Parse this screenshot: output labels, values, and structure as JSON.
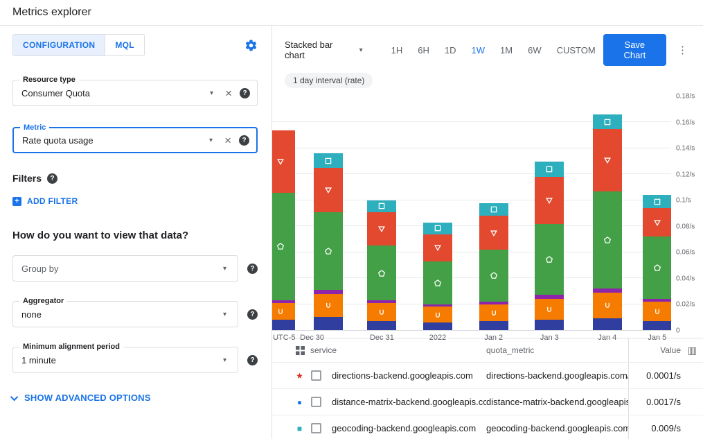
{
  "header": {
    "title": "Metrics explorer"
  },
  "config_panel": {
    "tabs": [
      {
        "label": "CONFIGURATION",
        "active": true
      },
      {
        "label": "MQL",
        "active": false
      }
    ],
    "resource_type": {
      "label": "Resource type",
      "value": "Consumer Quota"
    },
    "metric": {
      "label": "Metric",
      "value": "Rate quota usage"
    },
    "filters_label": "Filters",
    "add_filter_label": "ADD FILTER",
    "view_question": "How do you want to view that data?",
    "group_by": {
      "placeholder": "Group by"
    },
    "aggregator": {
      "label": "Aggregator",
      "value": "none"
    },
    "alignment": {
      "label": "Minimum alignment period",
      "value": "1 minute"
    },
    "advanced_label": "SHOW ADVANCED OPTIONS"
  },
  "toolbar": {
    "chart_type": "Stacked bar chart",
    "ranges": [
      "1H",
      "6H",
      "1D",
      "1W",
      "1M",
      "6W",
      "CUSTOM"
    ],
    "active_range": "1W",
    "save_label": "Save Chart"
  },
  "chip": "1 day interval (rate)",
  "chart_data": {
    "type": "bar",
    "subtype": "stacked",
    "grid": true,
    "ylim": [
      0,
      0.18
    ],
    "yticks": [
      {
        "v": 0.18,
        "label": "0.18/s"
      },
      {
        "v": 0.16,
        "label": "0.16/s"
      },
      {
        "v": 0.14,
        "label": "0.14/s"
      },
      {
        "v": 0.12,
        "label": "0.12/s"
      },
      {
        "v": 0.1,
        "label": "0.1/s"
      },
      {
        "v": 0.08,
        "label": "0.08/s"
      },
      {
        "v": 0.06,
        "label": "0.06/s"
      },
      {
        "v": 0.04,
        "label": "0.04/s"
      },
      {
        "v": 0.02,
        "label": "0.02/s"
      },
      {
        "v": 0,
        "label": "0"
      }
    ],
    "xticks": [
      {
        "x_pct": 3,
        "label": "UTC-5"
      },
      {
        "x_pct": 10,
        "label": "Dec 30"
      },
      {
        "x_pct": 27.5,
        "label": "Dec 31"
      },
      {
        "x_pct": 41.5,
        "label": "2022"
      },
      {
        "x_pct": 55.5,
        "label": "Jan 2"
      },
      {
        "x_pct": 69.5,
        "label": "Jan 3"
      },
      {
        "x_pct": 84,
        "label": "Jan 4"
      },
      {
        "x_pct": 96.5,
        "label": "Jan 5"
      }
    ],
    "series": [
      {
        "name": "series-navy",
        "color": "#303f9f",
        "marker": null
      },
      {
        "name": "series-orange",
        "color": "#f57c00",
        "marker": "cup"
      },
      {
        "name": "series-purple",
        "color": "#8e24aa",
        "marker": null
      },
      {
        "name": "series-green",
        "color": "#43a047",
        "marker": "pentagon"
      },
      {
        "name": "series-red",
        "color": "#e2492f",
        "marker": "triangle-down"
      },
      {
        "name": "series-teal",
        "color": "#2eafbe",
        "marker": "square"
      }
    ],
    "bars": [
      {
        "x_pct": 2,
        "values": [
          0.008,
          0.013,
          0.002,
          0.083,
          0.048,
          0.0
        ]
      },
      {
        "x_pct": 14,
        "values": [
          0.01,
          0.018,
          0.003,
          0.06,
          0.034,
          0.011
        ]
      },
      {
        "x_pct": 27.5,
        "values": [
          0.007,
          0.014,
          0.002,
          0.042,
          0.026,
          0.009
        ]
      },
      {
        "x_pct": 41.5,
        "values": [
          0.006,
          0.012,
          0.002,
          0.033,
          0.021,
          0.009
        ]
      },
      {
        "x_pct": 55.5,
        "values": [
          0.007,
          0.013,
          0.002,
          0.04,
          0.026,
          0.01
        ]
      },
      {
        "x_pct": 69.5,
        "values": [
          0.008,
          0.016,
          0.003,
          0.055,
          0.036,
          0.012
        ]
      },
      {
        "x_pct": 84,
        "values": [
          0.009,
          0.02,
          0.003,
          0.075,
          0.048,
          0.011
        ]
      },
      {
        "x_pct": 96.5,
        "values": [
          0.007,
          0.015,
          0.002,
          0.048,
          0.022,
          0.01
        ]
      }
    ]
  },
  "table": {
    "headers": {
      "service": "service",
      "quota_metric": "quota_metric",
      "value": "Value"
    },
    "rows": [
      {
        "marker": "star",
        "color": "#d93025",
        "service": "directions-backend.googleapis.com",
        "quota_metric": "directions-backend.googleapis.com/billabl",
        "value": "0.0001/s"
      },
      {
        "marker": "circle",
        "color": "#1a73e8",
        "service": "distance-matrix-backend.googleapis.com",
        "quota_metric": "distance-matrix-backend.googleapis.com/l",
        "value": "0.0017/s"
      },
      {
        "marker": "square",
        "color": "#2eafbe",
        "service": "geocoding-backend.googleapis.com",
        "quota_metric": "geocoding-backend.googleapis.com/billab",
        "value": "0.009/s"
      }
    ]
  }
}
